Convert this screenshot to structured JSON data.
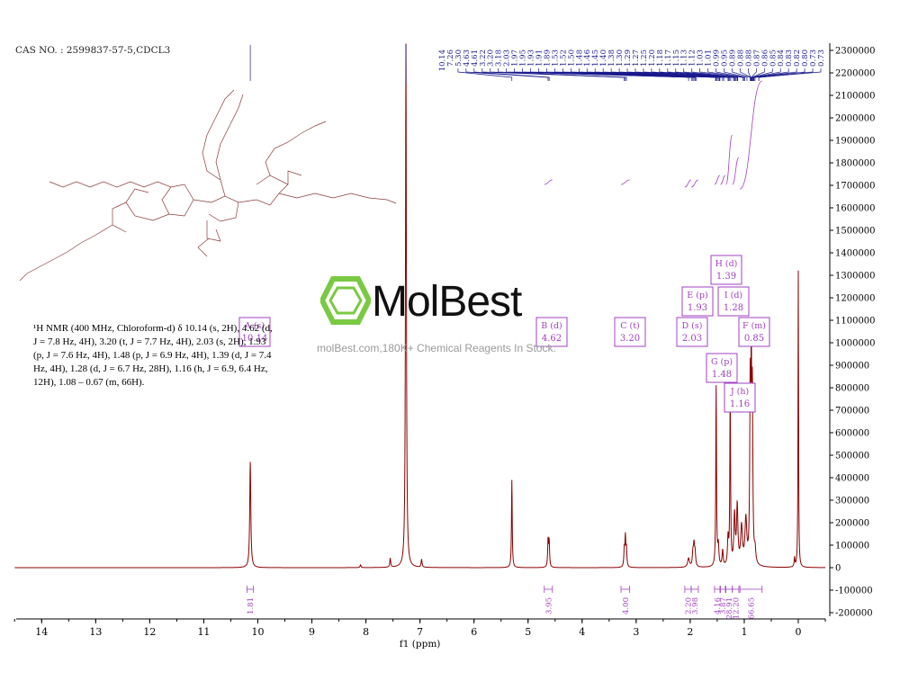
{
  "header": {
    "cas": "CAS NO. : 2599837-57-5,CDCL3"
  },
  "annotation": {
    "text": "¹H NMR (400 MHz, Chloroform-d) δ 10.14 (s, 2H), 4.62 (d, J = 7.8 Hz, 4H), 3.20 (t, J = 7.7 Hz, 4H), 2.03 (s, 2H), 1.93 (p, J = 7.6 Hz, 4H), 1.48 (p, J = 6.9 Hz, 4H), 1.39 (d, J = 7.4 Hz, 4H), 1.28 (d, J = 6.7 Hz, 28H), 1.16 (h, J = 6.9, 6.4 Hz, 12H), 1.08 – 0.67 (m, 66H)."
  },
  "watermark": {
    "brand": "MolBest",
    "tagline": "molBest.com,180K+ Chemical Reagents In Stock.",
    "color": "#7ac943"
  },
  "chart_data": {
    "type": "line",
    "title": "",
    "xlabel": "f1 (ppm)",
    "ylabel": "",
    "xlim": [
      14.5,
      -0.5
    ],
    "ylim": [
      -200000,
      2300000
    ],
    "x_ticks": [
      14,
      13,
      12,
      11,
      10,
      9,
      8,
      7,
      6,
      5,
      4,
      3,
      2,
      1,
      0
    ],
    "y_ticks": [
      2300000,
      2200000,
      2100000,
      2000000,
      1900000,
      1800000,
      1700000,
      1600000,
      1500000,
      1400000,
      1300000,
      1200000,
      1100000,
      1000000,
      900000,
      800000,
      700000,
      600000,
      500000,
      400000,
      300000,
      200000,
      100000,
      0,
      -100000,
      -200000
    ],
    "series_color": "#8b0000",
    "integral_color": "#a040c0",
    "peak_label_color": "#1a1a8c",
    "peaks": [
      {
        "ppm": 10.14,
        "height": 470000,
        "width": 0.012
      },
      {
        "ppm": 8.1,
        "height": 12000,
        "width": 0.01
      },
      {
        "ppm": 7.55,
        "height": 40000,
        "width": 0.01
      },
      {
        "ppm": 7.26,
        "height": 2330000,
        "width": 0.01
      },
      {
        "ppm": 6.97,
        "height": 35000,
        "width": 0.01
      },
      {
        "ppm": 5.3,
        "height": 390000,
        "width": 0.008
      },
      {
        "ppm": 4.63,
        "height": 120000,
        "width": 0.009
      },
      {
        "ppm": 4.61,
        "height": 115000,
        "width": 0.009
      },
      {
        "ppm": 3.22,
        "height": 80000,
        "width": 0.009
      },
      {
        "ppm": 3.2,
        "height": 130000,
        "width": 0.009
      },
      {
        "ppm": 3.18,
        "height": 80000,
        "width": 0.009
      },
      {
        "ppm": 2.03,
        "height": 40000,
        "width": 0.02
      },
      {
        "ppm": 1.95,
        "height": 60000,
        "width": 0.012
      },
      {
        "ppm": 1.93,
        "height": 90000,
        "width": 0.012
      },
      {
        "ppm": 1.91,
        "height": 60000,
        "width": 0.012
      },
      {
        "ppm": 1.52,
        "height": 800000,
        "width": 0.008
      },
      {
        "ppm": 1.48,
        "height": 90000,
        "width": 0.012
      },
      {
        "ppm": 1.4,
        "height": 70000,
        "width": 0.012
      },
      {
        "ppm": 1.3,
        "height": 120000,
        "width": 0.012
      },
      {
        "ppm": 1.26,
        "height": 780000,
        "width": 0.008
      },
      {
        "ppm": 1.18,
        "height": 220000,
        "width": 0.015
      },
      {
        "ppm": 1.13,
        "height": 260000,
        "width": 0.015
      },
      {
        "ppm": 1.05,
        "height": 170000,
        "width": 0.02
      },
      {
        "ppm": 0.97,
        "height": 200000,
        "width": 0.02
      },
      {
        "ppm": 0.89,
        "height": 720000,
        "width": 0.01
      },
      {
        "ppm": 0.87,
        "height": 760000,
        "width": 0.01
      },
      {
        "ppm": 0.85,
        "height": 680000,
        "width": 0.01
      },
      {
        "ppm": 0.8,
        "height": 60000,
        "width": 0.015
      },
      {
        "ppm": 0.07,
        "height": 40000,
        "width": 0.008
      },
      {
        "ppm": 0.0,
        "height": 1320000,
        "width": 0.006
      }
    ],
    "peak_labels": [
      "10.14",
      "7.26",
      "5.30",
      "4.63",
      "4.61",
      "3.22",
      "3.20",
      "3.18",
      "2.03",
      "1.97",
      "1.95",
      "1.93",
      "1.91",
      "1.89",
      "1.53",
      "1.52",
      "1.50",
      "1.48",
      "1.46",
      "1.45",
      "1.40",
      "1.38",
      "1.30",
      "1.29",
      "1.27",
      "1.25",
      "1.20",
      "1.18",
      "1.17",
      "1.15",
      "1.13",
      "1.12",
      "1.03",
      "1.01",
      "0.99",
      "0.95",
      "0.89",
      "0.88",
      "0.88",
      "0.87",
      "0.86",
      "0.85",
      "0.84",
      "0.83",
      "0.82",
      "0.80",
      "0.73",
      "0.73"
    ],
    "multiplets": [
      {
        "label": "A (s)",
        "value": "10.14"
      },
      {
        "label": "B (d)",
        "value": "4.62"
      },
      {
        "label": "C (t)",
        "value": "3.20"
      },
      {
        "label": "D (s)",
        "value": "2.03"
      },
      {
        "label": "E (p)",
        "value": "1.93"
      },
      {
        "label": "F (m)",
        "value": "0.85"
      },
      {
        "label": "G (p)",
        "value": "1.48"
      },
      {
        "label": "H (d)",
        "value": "1.39"
      },
      {
        "label": "I (d)",
        "value": "1.28"
      },
      {
        "label": "J (h)",
        "value": "1.16"
      }
    ],
    "integrals": [
      {
        "from": 10.2,
        "to": 10.08,
        "value": "1.81"
      },
      {
        "from": 4.7,
        "to": 4.55,
        "value": "3.95"
      },
      {
        "from": 3.28,
        "to": 3.12,
        "value": "4.00"
      },
      {
        "from": 2.1,
        "to": 1.98,
        "value": "2.20"
      },
      {
        "from": 1.98,
        "to": 1.85,
        "value": "3.98"
      },
      {
        "from": 1.55,
        "to": 1.45,
        "value": "4.16"
      },
      {
        "from": 1.44,
        "to": 1.35,
        "value": "3.87"
      },
      {
        "from": 1.34,
        "to": 1.22,
        "value": "28.91"
      },
      {
        "from": 1.22,
        "to": 1.1,
        "value": "12.20"
      },
      {
        "from": 1.08,
        "to": 0.67,
        "value": "66.65"
      }
    ]
  }
}
